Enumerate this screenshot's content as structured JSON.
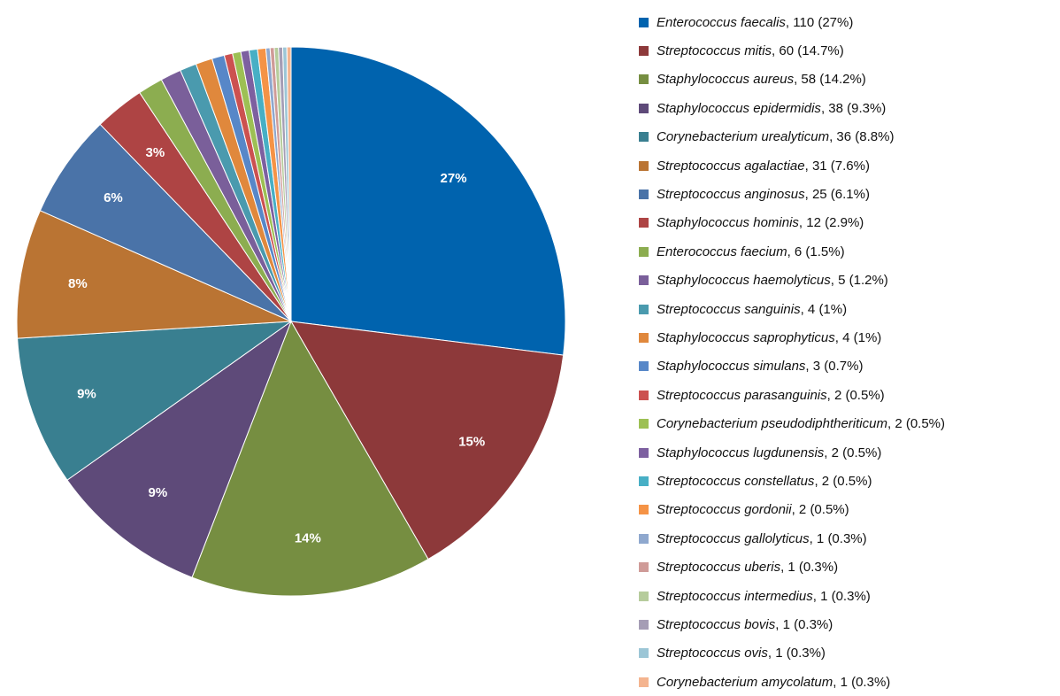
{
  "chart_data": {
    "type": "pie",
    "start_angle": "12 o'clock",
    "direction": "clockwise",
    "legend_position": "right",
    "slices": [
      {
        "name": "Enterococcus faecalis",
        "value": 110,
        "percent": "27%",
        "slice_label": "27%",
        "color": "#0063AE"
      },
      {
        "name": "Streptococcus mitis",
        "value": 60,
        "percent": "14.7%",
        "slice_label": "15%",
        "color": "#8D393A"
      },
      {
        "name": "Staphylococcus aureus",
        "value": 58,
        "percent": "14.2%",
        "slice_label": "14%",
        "color": "#768E41"
      },
      {
        "name": "Staphylococcus epidermidis",
        "value": 38,
        "percent": "9.3%",
        "slice_label": "9%",
        "color": "#5E4A79"
      },
      {
        "name": "Corynebacterium urealyticum",
        "value": 36,
        "percent": "8.8%",
        "slice_label": "9%",
        "color": "#397F90"
      },
      {
        "name": "Streptococcus agalactiae",
        "value": 31,
        "percent": "7.6%",
        "slice_label": "8%",
        "color": "#BA7433"
      },
      {
        "name": "Streptococcus anginosus",
        "value": 25,
        "percent": "6.1%",
        "slice_label": "6%",
        "color": "#4A73A8"
      },
      {
        "name": "Staphylococcus hominis",
        "value": 12,
        "percent": "2.9%",
        "slice_label": "3%",
        "color": "#AE4444"
      },
      {
        "name": "Enterococcus faecium",
        "value": 6,
        "percent": "1.5%",
        "slice_label": "",
        "color": "#8CAD50"
      },
      {
        "name": "Staphylococcus haemolyticus",
        "value": 5,
        "percent": "1.2%",
        "slice_label": "",
        "color": "#7A5F9A"
      },
      {
        "name": "Streptococcus sanguinis",
        "value": 4,
        "percent": "1%",
        "slice_label": "",
        "color": "#4A9AAE"
      },
      {
        "name": "Staphylococcus saprophyticus",
        "value": 4,
        "percent": "1%",
        "slice_label": "",
        "color": "#E0883C"
      },
      {
        "name": "Staphylococcus simulans",
        "value": 3,
        "percent": "0.7%",
        "slice_label": "",
        "color": "#5787C8"
      },
      {
        "name": "Streptococcus parasanguinis",
        "value": 2,
        "percent": "0.5%",
        "slice_label": "",
        "color": "#CC5150"
      },
      {
        "name": "Corynebacterium pseudodiphtheriticum",
        "value": 2,
        "percent": "0.5%",
        "slice_label": "",
        "color": "#9DC054"
      },
      {
        "name": "Staphylococcus lugdunensis",
        "value": 2,
        "percent": "0.5%",
        "slice_label": "",
        "color": "#7D60A0"
      },
      {
        "name": "Streptococcus constellatus",
        "value": 2,
        "percent": "0.5%",
        "slice_label": "",
        "color": "#47AFC5"
      },
      {
        "name": "Streptococcus gordonii",
        "value": 2,
        "percent": "0.5%",
        "slice_label": "",
        "color": "#F59346"
      },
      {
        "name": "Streptococcus gallolyticus",
        "value": 1,
        "percent": "0.3%",
        "slice_label": "",
        "color": "#8FA8CE"
      },
      {
        "name": "Streptococcus uberis",
        "value": 1,
        "percent": "0.3%",
        "slice_label": "",
        "color": "#CF9B98"
      },
      {
        "name": "Streptococcus intermedius",
        "value": 1,
        "percent": "0.3%",
        "slice_label": "",
        "color": "#B6CC9C"
      },
      {
        "name": "Streptococcus bovis",
        "value": 1,
        "percent": "0.3%",
        "slice_label": "",
        "color": "#A59DB5"
      },
      {
        "name": "Streptococcus ovis",
        "value": 1,
        "percent": "0.3%",
        "slice_label": "",
        "color": "#9CC6D6"
      },
      {
        "name": "Corynebacterium amycolatum",
        "value": 1,
        "percent": "0.3%",
        "slice_label": "",
        "color": "#F4B48F"
      }
    ]
  }
}
